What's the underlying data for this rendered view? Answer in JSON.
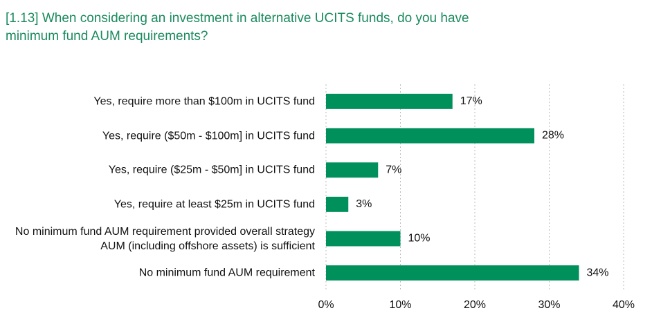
{
  "chart_data": {
    "type": "bar",
    "orientation": "horizontal",
    "title": "[1.13] When considering an investment in alternative UCITS funds, do you have minimum fund AUM requirements?",
    "categories": [
      "Yes, require more than $100m in UCITS fund",
      "Yes, require ($50m - $100m] in UCITS fund",
      "Yes, require ($25m - $50m] in UCITS fund",
      "Yes, require at least $25m in UCITS fund",
      "No minimum fund AUM requirement provided overall strategy AUM (including offshore assets) is sufficient",
      "No minimum fund AUM requirement"
    ],
    "values": [
      17,
      28,
      7,
      3,
      10,
      34
    ],
    "value_labels": [
      "17%",
      "28%",
      "7%",
      "3%",
      "10%",
      "34%"
    ],
    "color": "#00905c",
    "xlim": [
      0,
      40
    ],
    "xticks": [
      {
        "value": 0,
        "label": "0%"
      },
      {
        "value": 10,
        "label": "10%"
      },
      {
        "value": 20,
        "label": "20%"
      },
      {
        "value": 30,
        "label": "30%"
      },
      {
        "value": 40,
        "label": "40%"
      }
    ],
    "grid": true
  }
}
